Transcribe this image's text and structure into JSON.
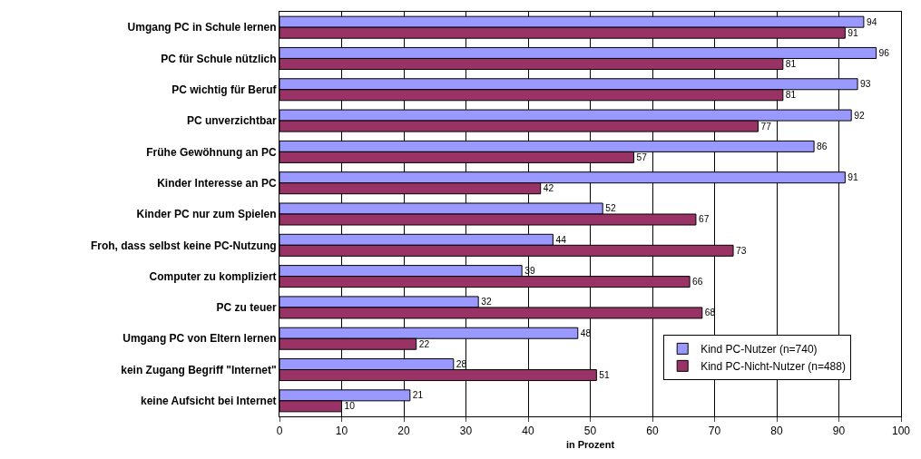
{
  "chart_data": {
    "type": "bar",
    "orientation": "horizontal",
    "xlabel": "in Prozent",
    "categories": [
      "Umgang PC in Schule lernen",
      "PC für Schule nützlich",
      "PC wichtig für Beruf",
      "PC unverzichtbar",
      "Frühe Gewöhnung an PC",
      "Kinder Interesse an PC",
      "Kinder PC nur zum Spielen",
      "Froh, dass selbst keine PC-Nutzung",
      "Computer zu kompliziert",
      "PC zu teuer",
      "Umgang PC von Eltern lernen",
      "kein Zugang Begriff \"Internet\"",
      "keine Aufsicht bei Internet"
    ],
    "series": [
      {
        "name": "Kind PC-Nutzer (n=740)",
        "color": "#9999ff",
        "values": [
          94,
          96,
          93,
          92,
          86,
          91,
          52,
          44,
          39,
          32,
          48,
          28,
          21
        ]
      },
      {
        "name": "Kind PC-Nicht-Nutzer (n=488)",
        "color": "#993366",
        "values": [
          91,
          81,
          81,
          77,
          57,
          42,
          67,
          73,
          66,
          68,
          22,
          51,
          10
        ]
      }
    ],
    "xlim": [
      0,
      100
    ],
    "xticks": [
      0,
      10,
      20,
      30,
      40,
      50,
      60,
      70,
      80,
      90,
      100
    ],
    "grid": "x",
    "legend": "bottom right",
    "data_labels": true
  }
}
